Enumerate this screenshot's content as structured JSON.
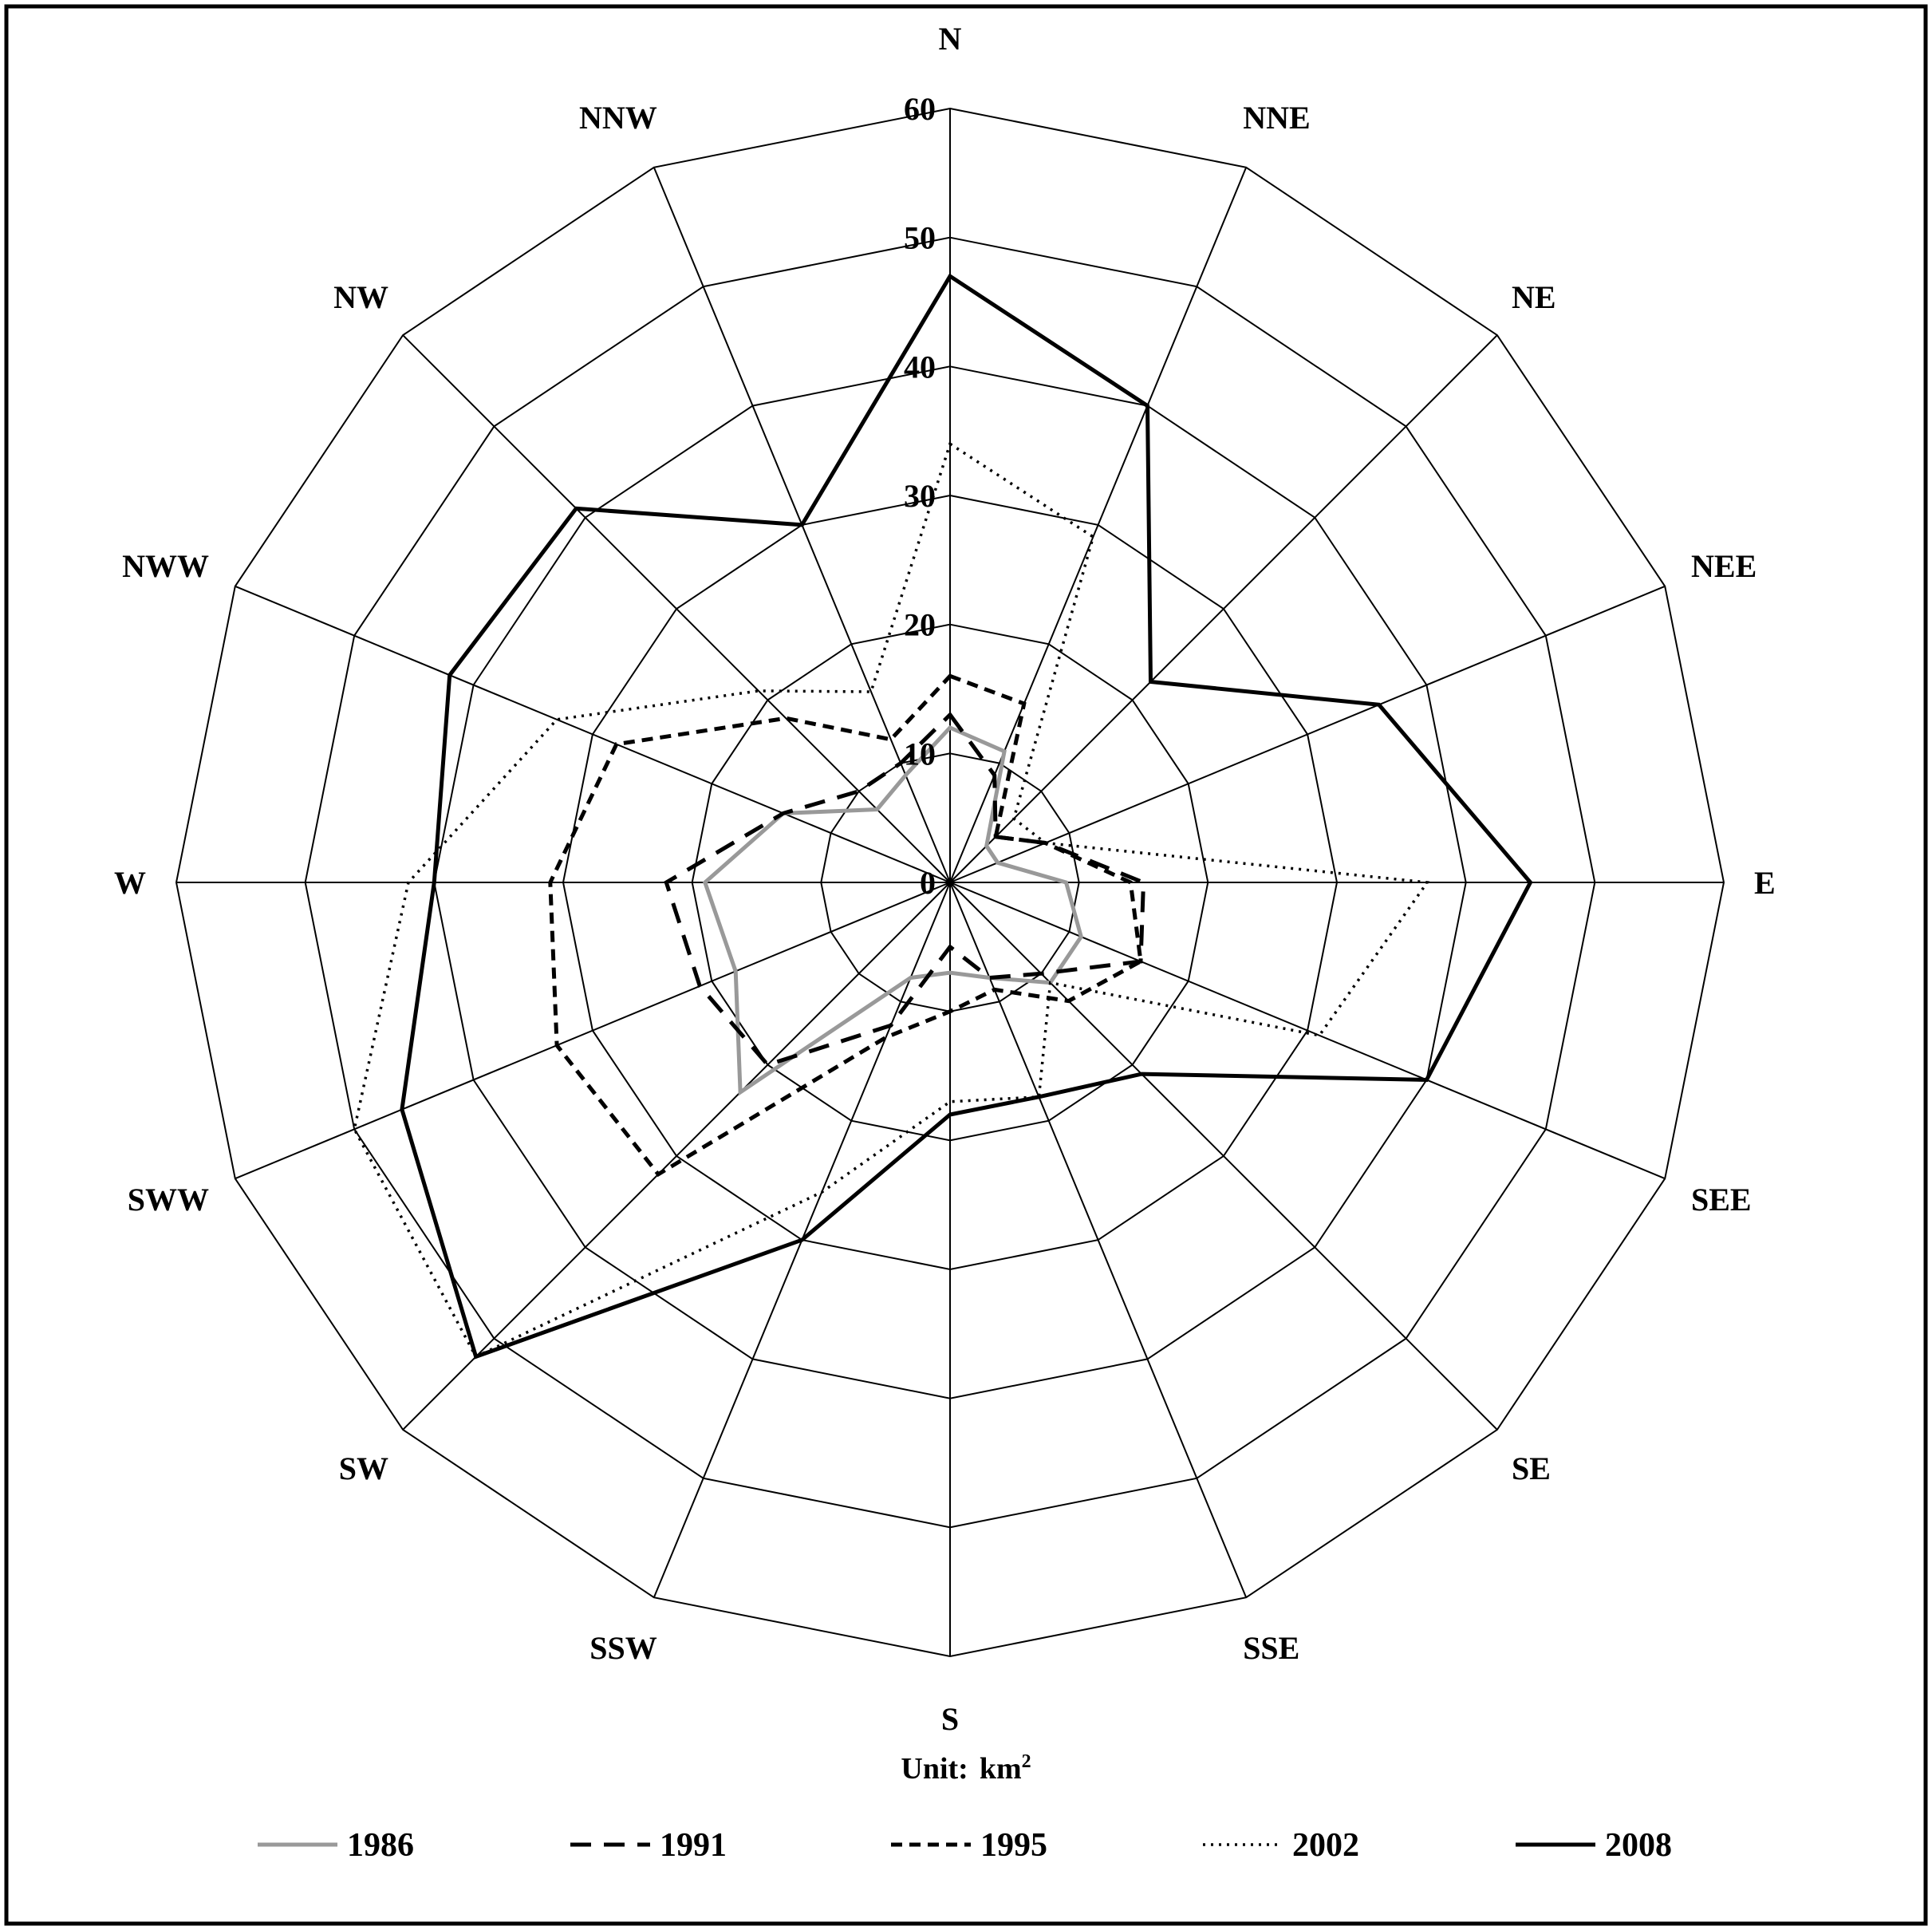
{
  "chart_data": {
    "type": "radar",
    "directions": [
      "N",
      "NNE",
      "NE",
      "NEE",
      "E",
      "SEE",
      "SE",
      "SSE",
      "S",
      "SSW",
      "SW",
      "SWW",
      "W",
      "NWW",
      "NW",
      "NNW"
    ],
    "rlim": [
      0,
      60
    ],
    "ticks": [
      0,
      10,
      20,
      30,
      40,
      50,
      60
    ],
    "grid": true,
    "unit_prefix": "Unit:",
    "unit_base": "km",
    "unit_sup": "2",
    "legend_position": "bottom",
    "series": [
      {
        "name": "1986",
        "color": "#999999",
        "dash": "solid",
        "values": [
          12,
          11,
          4,
          4,
          9,
          11,
          11,
          8,
          7,
          8,
          23,
          18,
          19,
          14,
          8,
          9
        ]
      },
      {
        "name": "1991",
        "color": "#000000",
        "dash": "long-dash",
        "values": [
          13,
          9,
          5,
          8,
          15,
          16,
          10,
          8,
          5,
          12,
          20,
          21,
          22,
          14,
          10,
          10
        ]
      },
      {
        "name": "1995",
        "color": "#000000",
        "dash": "short-dash",
        "values": [
          16,
          15,
          5,
          8,
          14,
          16,
          13,
          9,
          10,
          13,
          32,
          33,
          31,
          28,
          18,
          12
        ]
      },
      {
        "name": "2002",
        "color": "#000000",
        "dash": "dotted",
        "values": [
          34,
          29,
          7,
          8,
          37,
          31,
          11,
          18,
          17,
          26,
          52,
          50,
          42,
          33,
          21,
          16
        ]
      },
      {
        "name": "2008",
        "color": "#000000",
        "dash": "solid-thick",
        "values": [
          47,
          40,
          22,
          36,
          45,
          40,
          21,
          18,
          18,
          30,
          52,
          46,
          40,
          42,
          41,
          30
        ]
      }
    ]
  }
}
